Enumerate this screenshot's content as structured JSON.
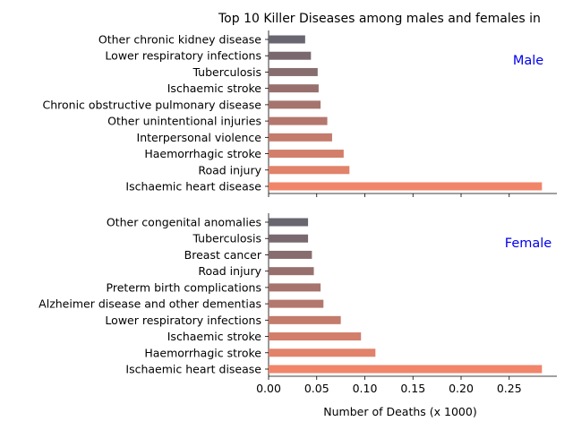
{
  "chart_data": [
    {
      "type": "bar",
      "orientation": "horizontal",
      "title": "Top 10 Killer Diseases among males and females in",
      "panel_label": "Male",
      "categories": [
        "Ischaemic heart disease",
        "Road injury",
        "Haemorrhagic stroke",
        "Interpersonal violence",
        "Other unintentional injuries",
        "Chronic obstructive pulmonary disease",
        "Ischaemic stroke",
        "Tuberculosis",
        "Lower respiratory infections",
        "Other chronic kidney disease"
      ],
      "values": [
        0.284,
        0.084,
        0.078,
        0.066,
        0.061,
        0.054,
        0.052,
        0.051,
        0.044,
        0.038
      ],
      "xlim": [
        0,
        0.3
      ]
    },
    {
      "type": "bar",
      "orientation": "horizontal",
      "panel_label": "Female",
      "categories": [
        "Ischaemic heart disease",
        "Haemorrhagic stroke",
        "Ischaemic stroke",
        "Lower respiratory infections",
        "Alzheimer disease and other dementias",
        "Preterm birth complications",
        "Road injury",
        "Breast cancer",
        "Tuberculosis",
        "Other congenital anomalies"
      ],
      "values": [
        0.284,
        0.111,
        0.096,
        0.075,
        0.057,
        0.054,
        0.047,
        0.045,
        0.041,
        0.041
      ],
      "xlabel": "Number of Deaths (x 1000)",
      "xticks": [
        "0.00",
        "0.05",
        "0.10",
        "0.15",
        "0.20",
        "0.25"
      ],
      "xlim": [
        0,
        0.3
      ]
    }
  ],
  "colors": {
    "gradient_start": "#f0856a",
    "gradient_end": "#6a6670",
    "panel_label": "#0000ee"
  }
}
